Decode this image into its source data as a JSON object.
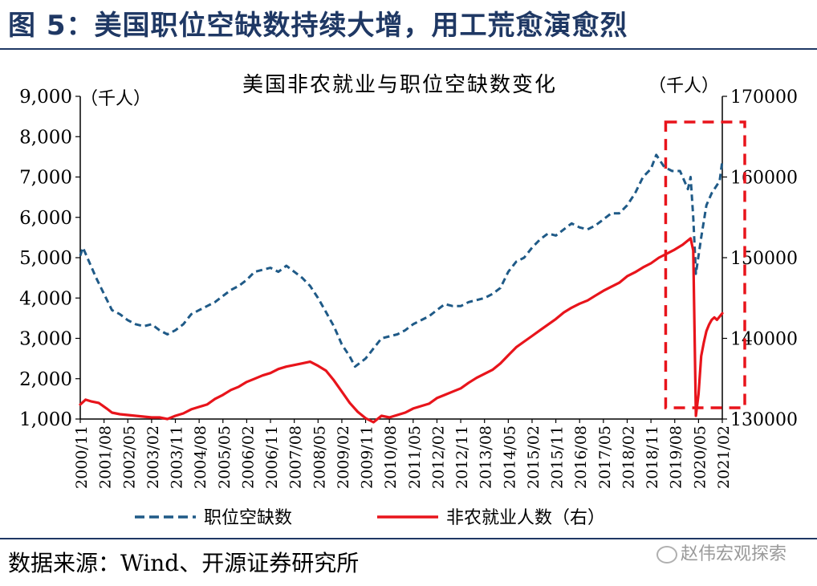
{
  "figure_title": "图 5：美国职位空缺数持续大增，用工荒愈演愈烈",
  "source": "数据来源：Wind、开源证券研究所",
  "watermark": "赵伟宏观探索",
  "colors": {
    "vacancy": "#1f5a87",
    "payroll": "#e8141b",
    "highlight": "#e8141b",
    "title": "#1f3864"
  },
  "chart_data": {
    "type": "line",
    "title": "美国非农就业与职位空缺数变化",
    "left_unit": "（千人）",
    "right_unit": "（千人）",
    "y_left": {
      "min": 1000,
      "max": 9000,
      "ticks": [
        1000,
        2000,
        3000,
        4000,
        5000,
        6000,
        7000,
        8000,
        9000
      ],
      "tick_labels": [
        "1,000",
        "2,000",
        "3,000",
        "4,000",
        "5,000",
        "6,000",
        "7,000",
        "8,000",
        "9,000"
      ]
    },
    "y_right": {
      "min": 130000,
      "max": 170000,
      "ticks": [
        130000,
        140000,
        150000,
        160000,
        170000
      ],
      "tick_labels": [
        "130000",
        "140000",
        "150000",
        "160000",
        "170000"
      ]
    },
    "x_start": "2000-11",
    "x_end": "2021-02",
    "x_tick_labels": [
      "2000/11",
      "2001/08",
      "2002/05",
      "2003/02",
      "2003/11",
      "2004/08",
      "2005/05",
      "2006/02",
      "2006/11",
      "2007/08",
      "2008/05",
      "2009/02",
      "2009/11",
      "2010/08",
      "2011/05",
      "2012/02",
      "2012/11",
      "2013/08",
      "2014/05",
      "2015/02",
      "2015/11",
      "2016/08",
      "2017/05",
      "2018/02",
      "2018/11",
      "2019/08",
      "2020/05",
      "2021/02"
    ],
    "grid": false,
    "legend_placement": "bottom",
    "highlight_box": {
      "from": "2019-07",
      "to": "2021-02",
      "style": "dashed"
    },
    "series": [
      {
        "name": "职位空缺数",
        "axis": "left",
        "style": "dashed",
        "points": [
          [
            "2000-11",
            5050
          ],
          [
            "2000-12",
            5250
          ],
          [
            "2001-02",
            4950
          ],
          [
            "2001-05",
            4500
          ],
          [
            "2001-08",
            4100
          ],
          [
            "2001-11",
            3700
          ],
          [
            "2002-02",
            3600
          ],
          [
            "2002-05",
            3450
          ],
          [
            "2002-08",
            3350
          ],
          [
            "2002-11",
            3300
          ],
          [
            "2003-02",
            3350
          ],
          [
            "2003-05",
            3200
          ],
          [
            "2003-08",
            3100
          ],
          [
            "2003-11",
            3200
          ],
          [
            "2004-02",
            3350
          ],
          [
            "2004-05",
            3600
          ],
          [
            "2004-08",
            3700
          ],
          [
            "2004-11",
            3800
          ],
          [
            "2005-02",
            3900
          ],
          [
            "2005-05",
            4050
          ],
          [
            "2005-08",
            4200
          ],
          [
            "2005-11",
            4300
          ],
          [
            "2006-02",
            4450
          ],
          [
            "2006-05",
            4650
          ],
          [
            "2006-08",
            4700
          ],
          [
            "2006-11",
            4750
          ],
          [
            "2007-02",
            4650
          ],
          [
            "2007-05",
            4800
          ],
          [
            "2007-08",
            4650
          ],
          [
            "2007-11",
            4500
          ],
          [
            "2008-02",
            4300
          ],
          [
            "2008-05",
            4000
          ],
          [
            "2008-08",
            3650
          ],
          [
            "2008-11",
            3300
          ],
          [
            "2009-02",
            2850
          ],
          [
            "2009-05",
            2550
          ],
          [
            "2009-07",
            2300
          ],
          [
            "2009-11",
            2500
          ],
          [
            "2010-02",
            2750
          ],
          [
            "2010-05",
            3000
          ],
          [
            "2010-08",
            3050
          ],
          [
            "2010-11",
            3100
          ],
          [
            "2011-02",
            3200
          ],
          [
            "2011-05",
            3350
          ],
          [
            "2011-08",
            3450
          ],
          [
            "2011-11",
            3550
          ],
          [
            "2012-02",
            3700
          ],
          [
            "2012-05",
            3850
          ],
          [
            "2012-08",
            3800
          ],
          [
            "2012-11",
            3800
          ],
          [
            "2013-02",
            3900
          ],
          [
            "2013-05",
            3950
          ],
          [
            "2013-08",
            4000
          ],
          [
            "2013-11",
            4100
          ],
          [
            "2014-02",
            4250
          ],
          [
            "2014-05",
            4650
          ],
          [
            "2014-08",
            4900
          ],
          [
            "2014-11",
            5000
          ],
          [
            "2015-02",
            5250
          ],
          [
            "2015-05",
            5450
          ],
          [
            "2015-08",
            5600
          ],
          [
            "2015-11",
            5550
          ],
          [
            "2016-02",
            5700
          ],
          [
            "2016-05",
            5850
          ],
          [
            "2016-08",
            5750
          ],
          [
            "2016-11",
            5700
          ],
          [
            "2017-02",
            5800
          ],
          [
            "2017-05",
            5950
          ],
          [
            "2017-08",
            6100
          ],
          [
            "2017-11",
            6100
          ],
          [
            "2018-02",
            6300
          ],
          [
            "2018-05",
            6600
          ],
          [
            "2018-08",
            7000
          ],
          [
            "2018-11",
            7200
          ],
          [
            "2019-01",
            7550
          ],
          [
            "2019-04",
            7250
          ],
          [
            "2019-07",
            7150
          ],
          [
            "2019-10",
            7150
          ],
          [
            "2020-01",
            6700
          ],
          [
            "2020-02",
            7000
          ],
          [
            "2020-03",
            6000
          ],
          [
            "2020-04",
            4600
          ],
          [
            "2020-06",
            5500
          ],
          [
            "2020-08",
            6300
          ],
          [
            "2020-10",
            6600
          ],
          [
            "2020-12",
            6800
          ],
          [
            "2021-01",
            6900
          ],
          [
            "2021-02",
            7400
          ]
        ]
      },
      {
        "name": "非农就业人数（右）",
        "axis": "right",
        "style": "solid",
        "points": [
          [
            "2000-11",
            131800
          ],
          [
            "2001-01",
            132400
          ],
          [
            "2001-03",
            132200
          ],
          [
            "2001-06",
            132000
          ],
          [
            "2001-09",
            131300
          ],
          [
            "2001-11",
            130800
          ],
          [
            "2002-02",
            130600
          ],
          [
            "2002-05",
            130500
          ],
          [
            "2002-08",
            130400
          ],
          [
            "2002-11",
            130300
          ],
          [
            "2003-02",
            130200
          ],
          [
            "2003-05",
            130200
          ],
          [
            "2003-08",
            130000
          ],
          [
            "2003-11",
            130400
          ],
          [
            "2004-02",
            130700
          ],
          [
            "2004-05",
            131200
          ],
          [
            "2004-08",
            131500
          ],
          [
            "2004-11",
            131800
          ],
          [
            "2005-02",
            132500
          ],
          [
            "2005-05",
            133000
          ],
          [
            "2005-08",
            133600
          ],
          [
            "2005-11",
            134000
          ],
          [
            "2006-02",
            134600
          ],
          [
            "2006-05",
            135000
          ],
          [
            "2006-08",
            135400
          ],
          [
            "2006-11",
            135700
          ],
          [
            "2007-02",
            136200
          ],
          [
            "2007-05",
            136500
          ],
          [
            "2007-08",
            136700
          ],
          [
            "2007-11",
            136900
          ],
          [
            "2008-02",
            137100
          ],
          [
            "2008-05",
            136600
          ],
          [
            "2008-08",
            136000
          ],
          [
            "2008-11",
            134800
          ],
          [
            "2009-02",
            133400
          ],
          [
            "2009-05",
            132000
          ],
          [
            "2009-08",
            130900
          ],
          [
            "2009-11",
            130100
          ],
          [
            "2010-02",
            129600
          ],
          [
            "2010-05",
            130400
          ],
          [
            "2010-08",
            130200
          ],
          [
            "2010-11",
            130500
          ],
          [
            "2011-02",
            130800
          ],
          [
            "2011-05",
            131300
          ],
          [
            "2011-08",
            131600
          ],
          [
            "2011-11",
            131900
          ],
          [
            "2012-02",
            132600
          ],
          [
            "2012-05",
            133000
          ],
          [
            "2012-08",
            133400
          ],
          [
            "2012-11",
            133800
          ],
          [
            "2013-02",
            134500
          ],
          [
            "2013-05",
            135100
          ],
          [
            "2013-08",
            135600
          ],
          [
            "2013-11",
            136100
          ],
          [
            "2014-02",
            136900
          ],
          [
            "2014-05",
            137900
          ],
          [
            "2014-08",
            138900
          ],
          [
            "2014-11",
            139600
          ],
          [
            "2015-02",
            140300
          ],
          [
            "2015-05",
            141000
          ],
          [
            "2015-08",
            141700
          ],
          [
            "2015-11",
            142400
          ],
          [
            "2016-02",
            143200
          ],
          [
            "2016-05",
            143800
          ],
          [
            "2016-08",
            144300
          ],
          [
            "2016-11",
            144700
          ],
          [
            "2017-02",
            145300
          ],
          [
            "2017-05",
            145900
          ],
          [
            "2017-08",
            146400
          ],
          [
            "2017-11",
            146900
          ],
          [
            "2018-02",
            147700
          ],
          [
            "2018-05",
            148200
          ],
          [
            "2018-08",
            148800
          ],
          [
            "2018-11",
            149300
          ],
          [
            "2019-02",
            150000
          ],
          [
            "2019-05",
            150500
          ],
          [
            "2019-08",
            151000
          ],
          [
            "2019-11",
            151600
          ],
          [
            "2020-02",
            152400
          ],
          [
            "2020-03",
            150900
          ],
          [
            "2020-04",
            130400
          ],
          [
            "2020-05",
            133100
          ],
          [
            "2020-06",
            137800
          ],
          [
            "2020-07",
            139500
          ],
          [
            "2020-08",
            140900
          ],
          [
            "2020-09",
            141700
          ],
          [
            "2020-10",
            142300
          ],
          [
            "2020-11",
            142600
          ],
          [
            "2020-12",
            142300
          ],
          [
            "2021-01",
            142700
          ],
          [
            "2021-02",
            143100
          ]
        ]
      }
    ]
  }
}
